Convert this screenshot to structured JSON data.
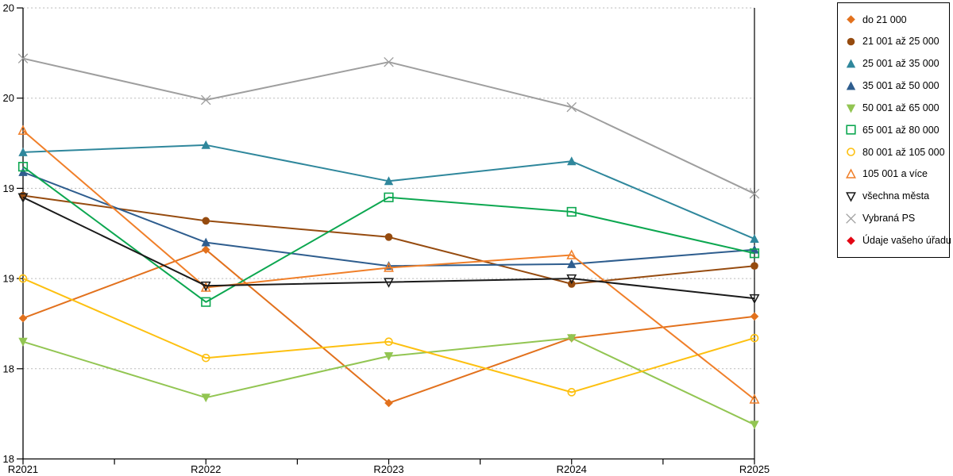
{
  "chart_data": {
    "type": "line",
    "title": "",
    "xlabel": "",
    "ylabel": "",
    "categories": [
      "R2021",
      "R2022",
      "R2023",
      "R2024",
      "R2025"
    ],
    "y_axis": {
      "min": 18,
      "max": 20.5,
      "step": 0.5,
      "tick_labels_bottom_to_top": [
        "18",
        "18",
        "19",
        "19",
        "20",
        "20"
      ]
    },
    "series": [
      {
        "name": "do 21 000",
        "marker": "diamond",
        "fill": "filled",
        "color": "#E2711D",
        "values": [
          18.78,
          19.16,
          18.31,
          18.67,
          18.79
        ]
      },
      {
        "name": "21 001 až 25 000",
        "marker": "circle",
        "fill": "filled",
        "color": "#964B0F",
        "values": [
          19.46,
          19.32,
          19.23,
          18.97,
          19.07
        ]
      },
      {
        "name": "25 001 až 35 000",
        "marker": "triangle-up",
        "fill": "filled",
        "color": "#2F879C",
        "values": [
          19.7,
          19.74,
          19.54,
          19.65,
          19.22
        ]
      },
      {
        "name": "35 001 až 50 000",
        "marker": "triangle-up",
        "fill": "filled",
        "color": "#2E5D8E",
        "values": [
          19.59,
          19.2,
          19.07,
          19.08,
          19.16
        ]
      },
      {
        "name": "50 001 až 65 000",
        "marker": "triangle-down",
        "fill": "filled",
        "color": "#92C552",
        "values": [
          18.65,
          18.34,
          18.57,
          18.67,
          18.19
        ]
      },
      {
        "name": "65 001 až 80 000",
        "marker": "square",
        "fill": "open",
        "color": "#0CA750",
        "values": [
          19.62,
          18.87,
          19.45,
          19.37,
          19.14
        ]
      },
      {
        "name": "80 001 až 105 000",
        "marker": "circle",
        "fill": "open",
        "color": "#FDC010",
        "values": [
          19.0,
          18.56,
          18.65,
          18.37,
          18.67
        ]
      },
      {
        "name": "105 001 a více",
        "marker": "triangle-up",
        "fill": "open",
        "color": "#F07F29",
        "values": [
          19.82,
          18.95,
          19.06,
          19.13,
          18.33
        ]
      },
      {
        "name": "všechna města",
        "marker": "triangle-down",
        "fill": "open",
        "color": "#1A1A1A",
        "values": [
          19.45,
          18.96,
          18.98,
          19.0,
          18.89
        ]
      },
      {
        "name": "Vybraná PS",
        "marker": "x",
        "fill": "open",
        "color": "#9E9E9E",
        "values": [
          20.22,
          19.99,
          20.2,
          19.95,
          19.47
        ]
      },
      {
        "name": "Údaje vašeho úřadu",
        "marker": "diamond",
        "fill": "filled",
        "color": "#E30613",
        "values": [
          null,
          null,
          null,
          null,
          null
        ]
      }
    ],
    "layout": {
      "legend_position": "right",
      "grid": "horizontal-dotted",
      "gridline_color": "#BDBDBD",
      "axis_color": "#000000",
      "background": "#FFFFFF",
      "legend_border_color": "#000000"
    }
  }
}
